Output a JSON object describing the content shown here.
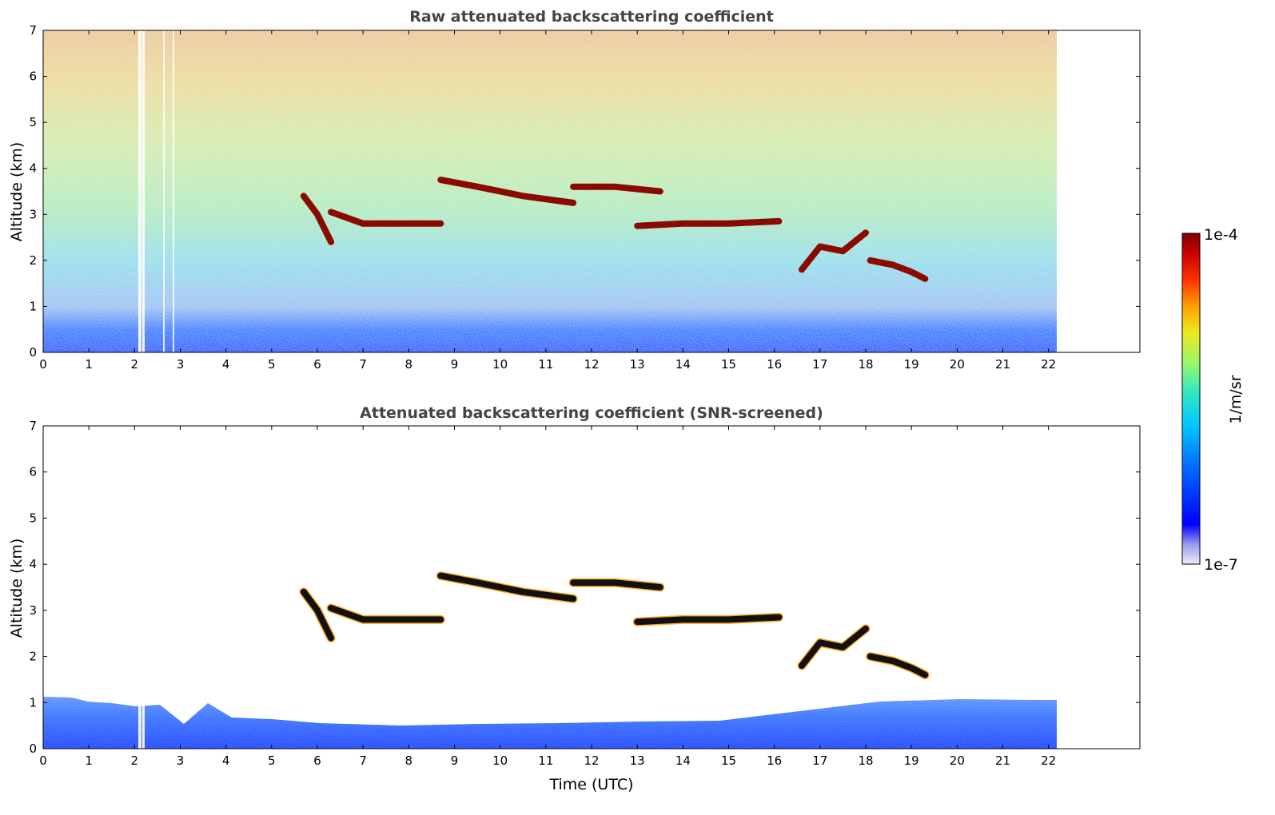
{
  "chart_data": [
    {
      "type": "heatmap",
      "title": "Raw attenuated backscattering coefficient",
      "xlabel": "",
      "ylabel": "Altitude (km)",
      "xlim": [
        0,
        24
      ],
      "ylim": [
        0,
        7
      ],
      "xticks": [
        "0",
        "1",
        "2",
        "3",
        "4",
        "5",
        "6",
        "7",
        "8",
        "9",
        "10",
        "11",
        "12",
        "13",
        "14",
        "15",
        "16",
        "17",
        "18",
        "19",
        "20",
        "21",
        "22"
      ],
      "yticks": [
        "0",
        "1",
        "2",
        "3",
        "4",
        "5",
        "6",
        "7"
      ],
      "data_extent_hours": [
        0,
        22.15
      ],
      "cloud_layers": [
        {
          "x": [
            8.7,
            9.5,
            10.5,
            11.6
          ],
          "y": [
            3.75,
            3.6,
            3.4,
            3.25
          ]
        },
        {
          "x": [
            6.3,
            7,
            8,
            8.7
          ],
          "y": [
            3.05,
            2.8,
            2.8,
            2.8
          ]
        },
        {
          "x": [
            13.0,
            14,
            15,
            16.1
          ],
          "y": [
            2.75,
            2.8,
            2.8,
            2.85
          ]
        },
        {
          "x": [
            11.6,
            12.5,
            13.5
          ],
          "y": [
            3.6,
            3.6,
            3.5
          ]
        },
        {
          "x": [
            5.7,
            6.0,
            6.3
          ],
          "y": [
            3.4,
            3.0,
            2.4
          ]
        },
        {
          "x": [
            16.6,
            17,
            17.5,
            18
          ],
          "y": [
            1.8,
            2.3,
            2.2,
            2.6
          ]
        },
        {
          "x": [
            18.1,
            18.6,
            19.0,
            19.3
          ],
          "y": [
            2.0,
            1.9,
            1.75,
            1.6
          ]
        }
      ]
    },
    {
      "type": "heatmap",
      "title": "Attenuated backscattering coefficient (SNR-screened)",
      "xlabel": "Time (UTC)",
      "ylabel": "Altitude (km)",
      "xlim": [
        0,
        24
      ],
      "ylim": [
        0,
        7
      ],
      "xticks": [
        "0",
        "1",
        "2",
        "3",
        "4",
        "5",
        "6",
        "7",
        "8",
        "9",
        "10",
        "11",
        "12",
        "13",
        "14",
        "15",
        "16",
        "17",
        "18",
        "19",
        "20",
        "21",
        "22"
      ],
      "yticks": [
        "0",
        "1",
        "2",
        "3",
        "4",
        "5",
        "6",
        "7"
      ],
      "boundary_layer_top_km": [
        1.0,
        0.5,
        0.55,
        1.05
      ]
    }
  ],
  "colorbar": {
    "label": "1/m/sr",
    "max_label": "1e-4",
    "min_label": "1e-7",
    "colors": [
      "#e6e6f5",
      "#b0b0ee",
      "#0000ff",
      "#0060ff",
      "#00b0ff",
      "#20e0d0",
      "#80ff80",
      "#e0f040",
      "#ffd000",
      "#ff7000",
      "#ff2000",
      "#c00000",
      "#800000"
    ]
  }
}
